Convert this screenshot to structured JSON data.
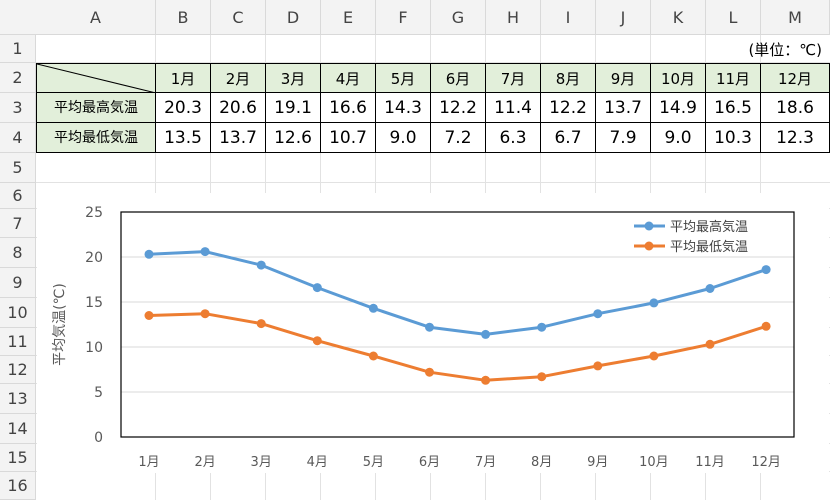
{
  "columns": [
    "A",
    "B",
    "C",
    "D",
    "E",
    "F",
    "G",
    "H",
    "I",
    "J",
    "K",
    "L",
    "M"
  ],
  "rows": [
    "1",
    "2",
    "3",
    "4",
    "5",
    "6",
    "7",
    "8",
    "9",
    "10",
    "11",
    "12",
    "13",
    "14",
    "15",
    "16"
  ],
  "unit_label": "(単位：℃)",
  "table": {
    "months": [
      "1月",
      "2月",
      "3月",
      "4月",
      "5月",
      "6月",
      "7月",
      "8月",
      "9月",
      "10月",
      "11月",
      "12月"
    ],
    "row3_label": "平均最高気温",
    "row4_label": "平均最低気温",
    "row3_values": [
      "20.3",
      "20.6",
      "19.1",
      "16.6",
      "14.3",
      "12.2",
      "11.4",
      "12.2",
      "13.7",
      "14.9",
      "16.5",
      "18.6"
    ],
    "row4_values": [
      "13.5",
      "13.7",
      "12.6",
      "10.7",
      "9.0",
      "7.2",
      "6.3",
      "6.7",
      "7.9",
      "9.0",
      "10.3",
      "12.3"
    ]
  },
  "chart_data": {
    "type": "line",
    "categories": [
      "1月",
      "2月",
      "3月",
      "4月",
      "5月",
      "6月",
      "7月",
      "8月",
      "9月",
      "10月",
      "11月",
      "12月"
    ],
    "series": [
      {
        "name": "平均最高気温",
        "color": "#5b9bd5",
        "values": [
          20.3,
          20.6,
          19.1,
          16.6,
          14.3,
          12.2,
          11.4,
          12.2,
          13.7,
          14.9,
          16.5,
          18.6
        ]
      },
      {
        "name": "平均最低気温",
        "color": "#ed7d31",
        "values": [
          13.5,
          13.7,
          12.6,
          10.7,
          9.0,
          7.2,
          6.3,
          6.7,
          7.9,
          9.0,
          10.3,
          12.3
        ]
      }
    ],
    "ylabel": "平均気温(℃)",
    "ylim": [
      0,
      25
    ],
    "yticks": [
      0,
      5,
      10,
      15,
      20,
      25
    ],
    "grid": true,
    "legend": "top-right"
  }
}
